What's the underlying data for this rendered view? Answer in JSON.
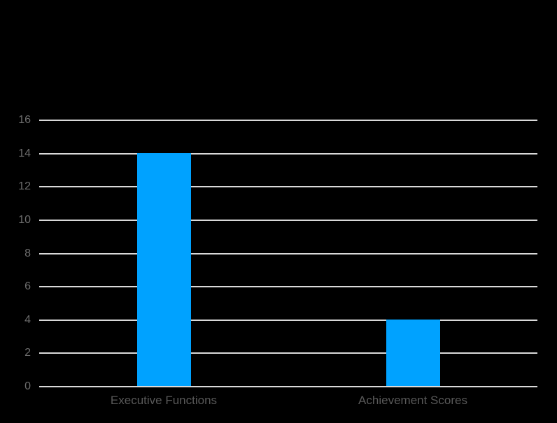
{
  "chart_data": {
    "type": "bar",
    "title": "",
    "categories": [
      "Executive Functions",
      "Achievement Scores"
    ],
    "values": [
      14,
      4
    ],
    "xlabel": "",
    "ylabel": "",
    "ylim": [
      0,
      16
    ],
    "yticks": [
      0,
      2,
      4,
      6,
      8,
      10,
      12,
      14,
      16
    ],
    "grid": true,
    "legend": false,
    "background": "black"
  },
  "colors": {
    "background": "#000000",
    "bar": "#00A2FF",
    "gridline": "#D9D9D9",
    "axis_line": "#D9D9D9",
    "tick_label": "#6E6E6E",
    "category_label": "#595959"
  }
}
